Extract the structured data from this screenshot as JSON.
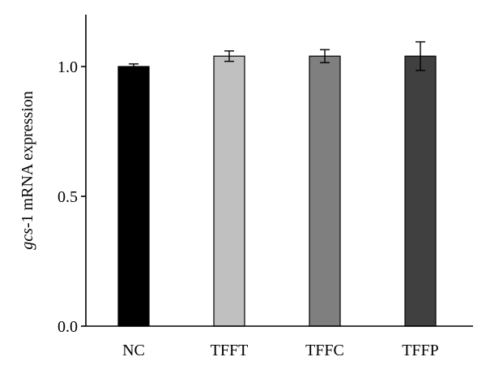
{
  "chart_data": {
    "type": "bar",
    "categories": [
      "NC",
      "TFFT",
      "TFFC",
      "TFFP"
    ],
    "values": [
      1.0,
      1.04,
      1.04,
      1.04
    ],
    "errors": [
      0.01,
      0.02,
      0.025,
      0.055
    ],
    "colors": [
      "#000000",
      "#c0c0c0",
      "#7f7f7f",
      "#404040"
    ],
    "ylabel_italic": "gcs",
    "ylabel_rest": "-1 mRNA expression",
    "xlabel": "",
    "title": "",
    "ylim": [
      0,
      1.2
    ],
    "yticks": [
      0.0,
      0.5,
      1.0
    ],
    "ytick_labels": [
      "0.0",
      "0.5",
      "1.0"
    ],
    "grid": false,
    "legend": "none"
  }
}
